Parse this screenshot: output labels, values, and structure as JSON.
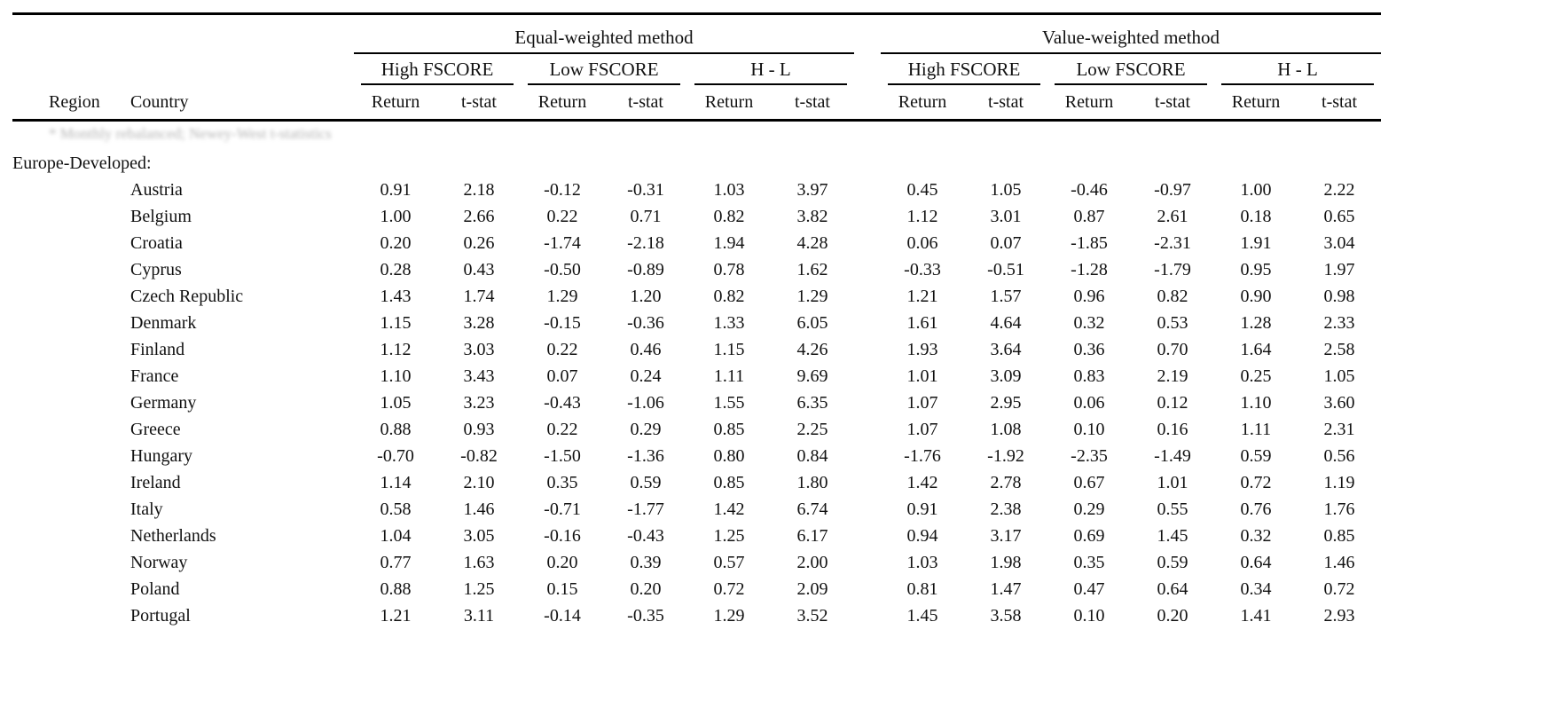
{
  "table": {
    "methods": [
      "Equal-weighted method",
      "Value-weighted method"
    ],
    "subgroups": [
      "High FSCORE",
      "Low FSCORE",
      "H - L"
    ],
    "value_headers": [
      "Return",
      "t-stat"
    ],
    "region_header": "Region",
    "country_header": "Country",
    "faded_note": "* Monthly rebalanced; Newey-West t-statistics",
    "section_label": "Europe-Developed:",
    "rows": [
      {
        "country": "Austria",
        "values": [
          "0.91",
          "2.18",
          "-0.12",
          "-0.31",
          "1.03",
          "3.97",
          "0.45",
          "1.05",
          "-0.46",
          "-0.97",
          "1.00",
          "2.22"
        ]
      },
      {
        "country": "Belgium",
        "values": [
          "1.00",
          "2.66",
          "0.22",
          "0.71",
          "0.82",
          "3.82",
          "1.12",
          "3.01",
          "0.87",
          "2.61",
          "0.18",
          "0.65"
        ]
      },
      {
        "country": "Croatia",
        "values": [
          "0.20",
          "0.26",
          "-1.74",
          "-2.18",
          "1.94",
          "4.28",
          "0.06",
          "0.07",
          "-1.85",
          "-2.31",
          "1.91",
          "3.04"
        ]
      },
      {
        "country": "Cyprus",
        "values": [
          "0.28",
          "0.43",
          "-0.50",
          "-0.89",
          "0.78",
          "1.62",
          "-0.33",
          "-0.51",
          "-1.28",
          "-1.79",
          "0.95",
          "1.97"
        ]
      },
      {
        "country": "Czech Republic",
        "values": [
          "1.43",
          "1.74",
          "1.29",
          "1.20",
          "0.82",
          "1.29",
          "1.21",
          "1.57",
          "0.96",
          "0.82",
          "0.90",
          "0.98"
        ]
      },
      {
        "country": "Denmark",
        "values": [
          "1.15",
          "3.28",
          "-0.15",
          "-0.36",
          "1.33",
          "6.05",
          "1.61",
          "4.64",
          "0.32",
          "0.53",
          "1.28",
          "2.33"
        ]
      },
      {
        "country": "Finland",
        "values": [
          "1.12",
          "3.03",
          "0.22",
          "0.46",
          "1.15",
          "4.26",
          "1.93",
          "3.64",
          "0.36",
          "0.70",
          "1.64",
          "2.58"
        ]
      },
      {
        "country": "France",
        "values": [
          "1.10",
          "3.43",
          "0.07",
          "0.24",
          "1.11",
          "9.69",
          "1.01",
          "3.09",
          "0.83",
          "2.19",
          "0.25",
          "1.05"
        ]
      },
      {
        "country": "Germany",
        "values": [
          "1.05",
          "3.23",
          "-0.43",
          "-1.06",
          "1.55",
          "6.35",
          "1.07",
          "2.95",
          "0.06",
          "0.12",
          "1.10",
          "3.60"
        ]
      },
      {
        "country": "Greece",
        "values": [
          "0.88",
          "0.93",
          "0.22",
          "0.29",
          "0.85",
          "2.25",
          "1.07",
          "1.08",
          "0.10",
          "0.16",
          "1.11",
          "2.31"
        ]
      },
      {
        "country": "Hungary",
        "values": [
          "-0.70",
          "-0.82",
          "-1.50",
          "-1.36",
          "0.80",
          "0.84",
          "-1.76",
          "-1.92",
          "-2.35",
          "-1.49",
          "0.59",
          "0.56"
        ]
      },
      {
        "country": "Ireland",
        "values": [
          "1.14",
          "2.10",
          "0.35",
          "0.59",
          "0.85",
          "1.80",
          "1.42",
          "2.78",
          "0.67",
          "1.01",
          "0.72",
          "1.19"
        ]
      },
      {
        "country": "Italy",
        "values": [
          "0.58",
          "1.46",
          "-0.71",
          "-1.77",
          "1.42",
          "6.74",
          "0.91",
          "2.38",
          "0.29",
          "0.55",
          "0.76",
          "1.76"
        ]
      },
      {
        "country": "Netherlands",
        "values": [
          "1.04",
          "3.05",
          "-0.16",
          "-0.43",
          "1.25",
          "6.17",
          "0.94",
          "3.17",
          "0.69",
          "1.45",
          "0.32",
          "0.85"
        ]
      },
      {
        "country": "Norway",
        "values": [
          "0.77",
          "1.63",
          "0.20",
          "0.39",
          "0.57",
          "2.00",
          "1.03",
          "1.98",
          "0.35",
          "0.59",
          "0.64",
          "1.46"
        ]
      },
      {
        "country": "Poland",
        "values": [
          "0.88",
          "1.25",
          "0.15",
          "0.20",
          "0.72",
          "2.09",
          "0.81",
          "1.47",
          "0.47",
          "0.64",
          "0.34",
          "0.72"
        ]
      },
      {
        "country": "Portugal",
        "values": [
          "1.21",
          "3.11",
          "-0.14",
          "-0.35",
          "1.29",
          "3.52",
          "1.45",
          "3.58",
          "0.10",
          "0.20",
          "1.41",
          "2.93"
        ]
      }
    ]
  }
}
